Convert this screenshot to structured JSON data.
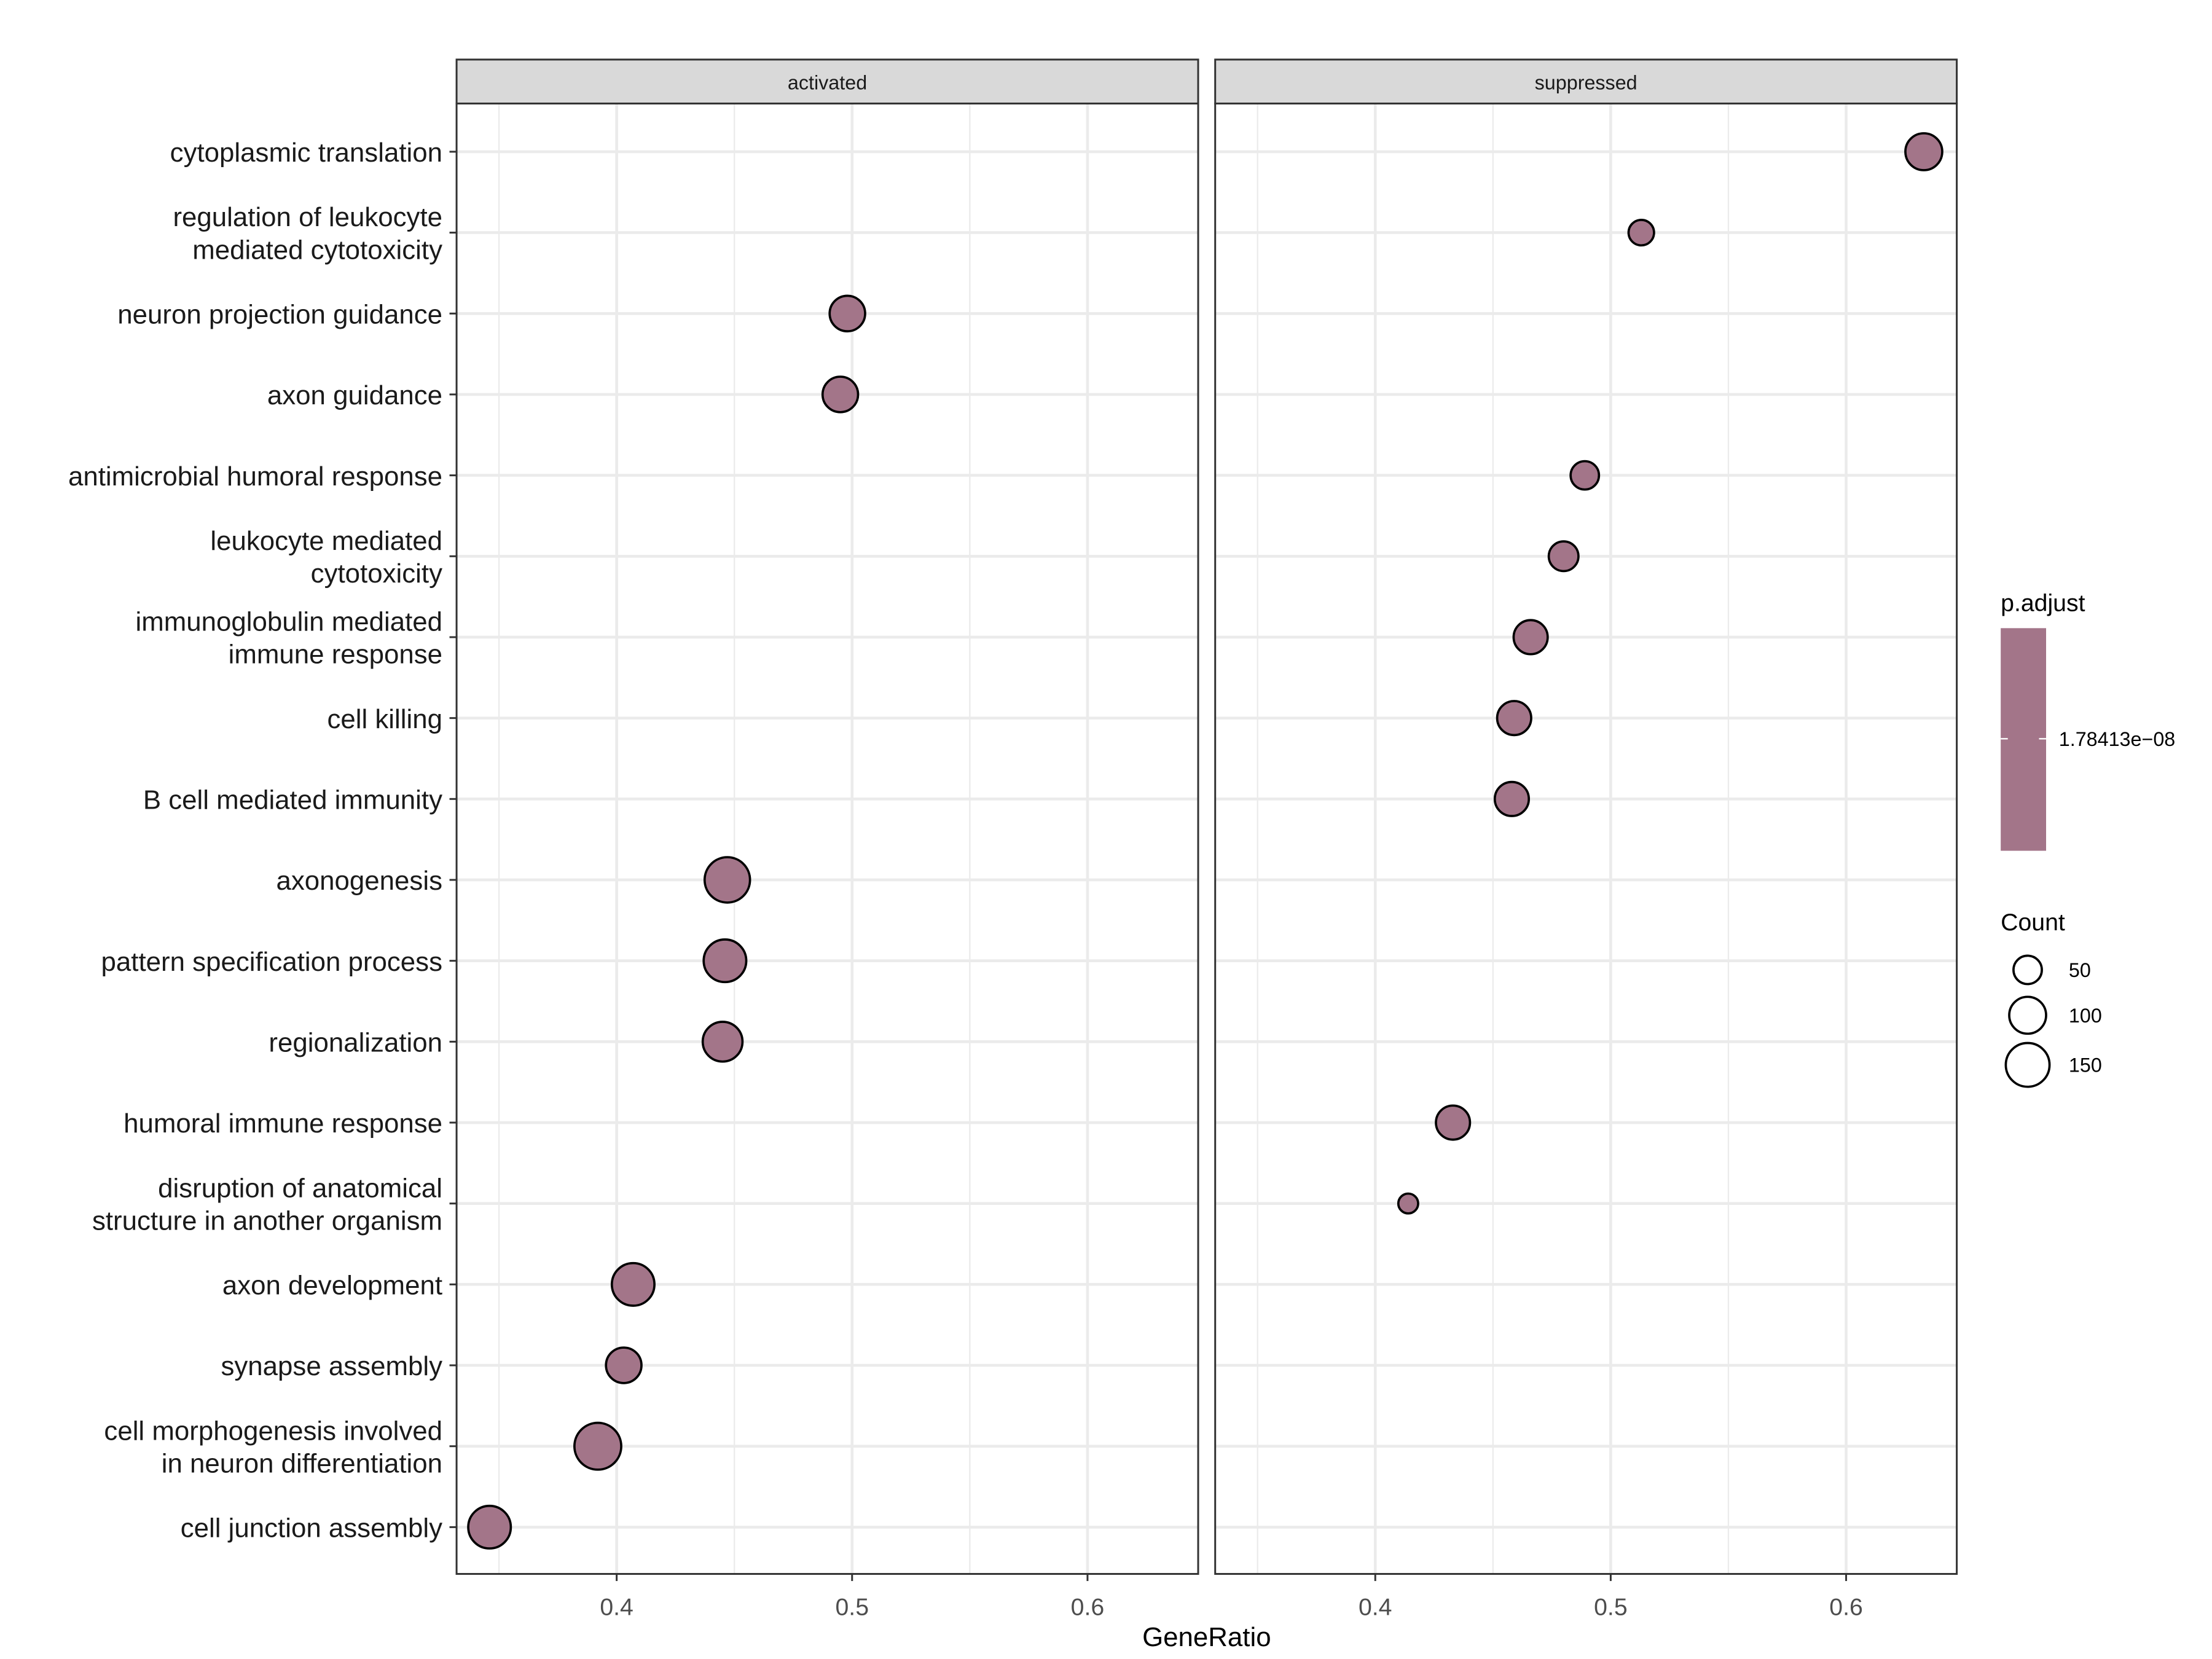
{
  "chart_data": {
    "type": "scatter",
    "xlabel": "GeneRatio",
    "ylabel": "",
    "xlim": [
      0.332,
      0.647
    ],
    "xticks": [
      "0.4",
      "0.5",
      "0.6"
    ],
    "xtick_values": [
      0.4,
      0.5,
      0.6
    ],
    "grid": true,
    "point_color": "#a37589",
    "facets": [
      "activated",
      "suppressed"
    ],
    "categories": [
      "cytoplasmic translation",
      "regulation of leukocyte\nmediated cytotoxicity",
      "neuron projection guidance",
      "axon guidance",
      "antimicrobial humoral response",
      "leukocyte mediated\ncytotoxicity",
      "immunoglobulin mediated\nimmune response",
      "cell killing",
      "B cell mediated immunity",
      "axonogenesis",
      "pattern specification process",
      "regionalization",
      "humoral immune response",
      "disruption of anatomical\nstructure in another organism",
      "axon development",
      "synapse assembly",
      "cell morphogenesis involved\nin neuron differentiation",
      "cell junction assembly"
    ],
    "points": [
      {
        "facet": "suppressed",
        "category": "cytoplasmic translation",
        "x": 0.633,
        "count": 100
      },
      {
        "facet": "suppressed",
        "category": "regulation of leukocyte\nmediated cytotoxicity",
        "x": 0.513,
        "count": 36
      },
      {
        "facet": "activated",
        "category": "neuron projection guidance",
        "x": 0.498,
        "count": 91
      },
      {
        "facet": "activated",
        "category": "axon guidance",
        "x": 0.495,
        "count": 91
      },
      {
        "facet": "suppressed",
        "category": "antimicrobial humoral response",
        "x": 0.489,
        "count": 50
      },
      {
        "facet": "suppressed",
        "category": "leukocyte mediated\ncytotoxicity",
        "x": 0.48,
        "count": 57
      },
      {
        "facet": "suppressed",
        "category": "immunoglobulin mediated\nimmune response",
        "x": 0.466,
        "count": 82
      },
      {
        "facet": "suppressed",
        "category": "cell killing",
        "x": 0.459,
        "count": 82
      },
      {
        "facet": "suppressed",
        "category": "B cell mediated immunity",
        "x": 0.458,
        "count": 82
      },
      {
        "facet": "activated",
        "category": "axonogenesis",
        "x": 0.447,
        "count": 163
      },
      {
        "facet": "activated",
        "category": "pattern specification process",
        "x": 0.446,
        "count": 141
      },
      {
        "facet": "activated",
        "category": "regionalization",
        "x": 0.445,
        "count": 120
      },
      {
        "facet": "suppressed",
        "category": "humoral immune response",
        "x": 0.433,
        "count": 82
      },
      {
        "facet": "suppressed",
        "category": "disruption of anatomical\nstructure in another organism",
        "x": 0.414,
        "count": 13
      },
      {
        "facet": "activated",
        "category": "axon development",
        "x": 0.407,
        "count": 141
      },
      {
        "facet": "activated",
        "category": "synapse assembly",
        "x": 0.403,
        "count": 91
      },
      {
        "facet": "activated",
        "category": "cell morphogenesis involved\nin neuron differentiation",
        "x": 0.392,
        "count": 175
      },
      {
        "facet": "activated",
        "category": "cell junction assembly",
        "x": 0.346,
        "count": 141
      }
    ],
    "legend": {
      "color_title": "p.adjust",
      "color_label": "1.78413e−08",
      "size_title": "Count",
      "size_values": [
        "50",
        "100",
        "150"
      ],
      "placement": "right"
    }
  }
}
